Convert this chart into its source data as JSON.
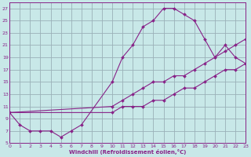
{
  "xlabel": "Windchill (Refroidissement éolien,°C)",
  "bg_color": "#c8e8e8",
  "grid_color": "#9ab0b8",
  "line_color": "#882288",
  "xlim": [
    0,
    23
  ],
  "ylim": [
    5,
    28
  ],
  "xticks": [
    0,
    1,
    2,
    3,
    4,
    5,
    6,
    7,
    8,
    9,
    10,
    11,
    12,
    13,
    14,
    15,
    16,
    17,
    18,
    19,
    20,
    21,
    22,
    23
  ],
  "yticks": [
    5,
    7,
    9,
    11,
    13,
    15,
    17,
    19,
    21,
    23,
    25,
    27
  ],
  "curve1_x": [
    0,
    1,
    2,
    3,
    4,
    5,
    6,
    7,
    10,
    11,
    12,
    13,
    14,
    15,
    16,
    17,
    18,
    19,
    20,
    21,
    22,
    23
  ],
  "curve1_y": [
    10,
    8,
    7,
    7,
    7,
    6,
    7,
    8,
    15,
    19,
    21,
    24,
    25,
    27,
    27,
    26,
    25,
    22,
    19,
    21,
    19,
    18
  ],
  "curve2_x": [
    0,
    10,
    11,
    12,
    13,
    14,
    15,
    16,
    17,
    18,
    19,
    20,
    21,
    22,
    23
  ],
  "curve2_y": [
    10,
    11,
    12,
    13,
    14,
    15,
    15,
    16,
    16,
    17,
    18,
    19,
    20,
    21,
    22
  ],
  "curve3_x": [
    0,
    10,
    11,
    12,
    13,
    14,
    15,
    16,
    17,
    18,
    19,
    20,
    21,
    22,
    23
  ],
  "curve3_y": [
    10,
    10,
    11,
    11,
    11,
    12,
    12,
    13,
    14,
    14,
    15,
    16,
    17,
    17,
    18
  ],
  "figsize": [
    3.2,
    2.0
  ],
  "dpi": 100
}
